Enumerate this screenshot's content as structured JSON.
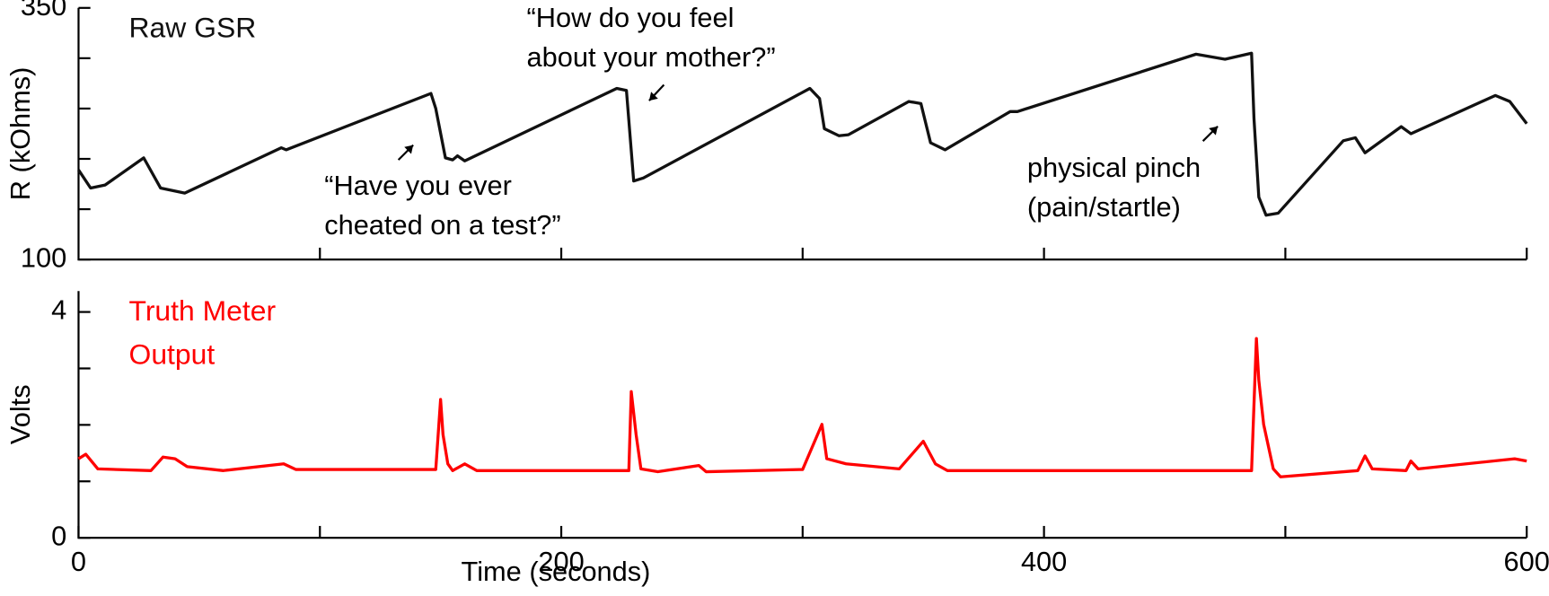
{
  "chart_data": [
    {
      "type": "line",
      "title": "Raw GSR",
      "ylabel": "R (kOhms)",
      "xlim": [
        0,
        600
      ],
      "xtick_marks": [
        100,
        200,
        300,
        400,
        500,
        600
      ],
      "ylim": [
        100,
        350
      ],
      "yticks": [
        100,
        350
      ],
      "minor_yticks": [
        150,
        200,
        250,
        300
      ],
      "series": [
        {
          "color": "#111111",
          "x": [
            0,
            5,
            11,
            27,
            34,
            44,
            84,
            86,
            146,
            148,
            152,
            155,
            157,
            160,
            223,
            227,
            230,
            234,
            303,
            307,
            309,
            315,
            319,
            344,
            349,
            353,
            359,
            386,
            389,
            463,
            475,
            486,
            487,
            489,
            492,
            497,
            524,
            529,
            533,
            548,
            552,
            587,
            593,
            600
          ],
          "values": [
            189,
            171,
            174,
            201,
            171,
            166,
            211,
            209,
            265,
            250,
            201,
            199,
            203,
            198,
            270,
            268,
            178,
            181,
            270,
            260,
            230,
            223,
            224,
            257,
            255,
            216,
            209,
            247,
            247,
            304,
            299,
            305,
            240,
            162,
            144,
            146,
            218,
            221,
            206,
            232,
            225,
            263,
            257,
            235
          ]
        }
      ],
      "annotations": [
        {
          "lines": [
            "“Have you ever",
            "cheated on a test?”"
          ]
        },
        {
          "lines": [
            "“How do you feel",
            "about your mother?”"
          ]
        },
        {
          "lines": [
            "physical pinch",
            "(pain/startle)"
          ]
        }
      ]
    },
    {
      "type": "line",
      "title": [
        "Truth Meter",
        "Output"
      ],
      "ylabel": "Volts",
      "xlabel": "Time (seconds)",
      "xlim": [
        0,
        600
      ],
      "xticks": [
        0,
        200,
        400,
        600
      ],
      "minor_xticks": [
        100,
        300,
        500
      ],
      "ylim": [
        0,
        4.37
      ],
      "yticks": [
        0,
        4
      ],
      "minor_yticks": [
        1,
        2,
        3
      ],
      "series": [
        {
          "color": "#ff0000",
          "x": [
            0,
            3,
            8,
            30,
            35,
            40,
            45,
            60,
            85,
            90,
            148,
            150,
            151,
            153,
            155,
            160,
            165,
            228,
            229,
            231,
            233,
            240,
            257,
            260,
            300,
            308,
            310,
            318,
            340,
            350,
            355,
            360,
            486,
            488,
            489,
            491,
            495,
            498,
            530,
            533,
            536,
            550,
            552,
            555,
            595,
            600
          ],
          "values": [
            1.4,
            1.48,
            1.22,
            1.19,
            1.43,
            1.4,
            1.26,
            1.19,
            1.31,
            1.21,
            1.21,
            2.45,
            1.83,
            1.31,
            1.19,
            1.31,
            1.19,
            1.19,
            2.59,
            1.83,
            1.22,
            1.17,
            1.28,
            1.17,
            1.21,
            2.01,
            1.4,
            1.31,
            1.22,
            1.71,
            1.31,
            1.19,
            1.19,
            3.53,
            2.79,
            2.01,
            1.22,
            1.08,
            1.19,
            1.45,
            1.22,
            1.19,
            1.36,
            1.22,
            1.4,
            1.36
          ]
        }
      ]
    }
  ]
}
